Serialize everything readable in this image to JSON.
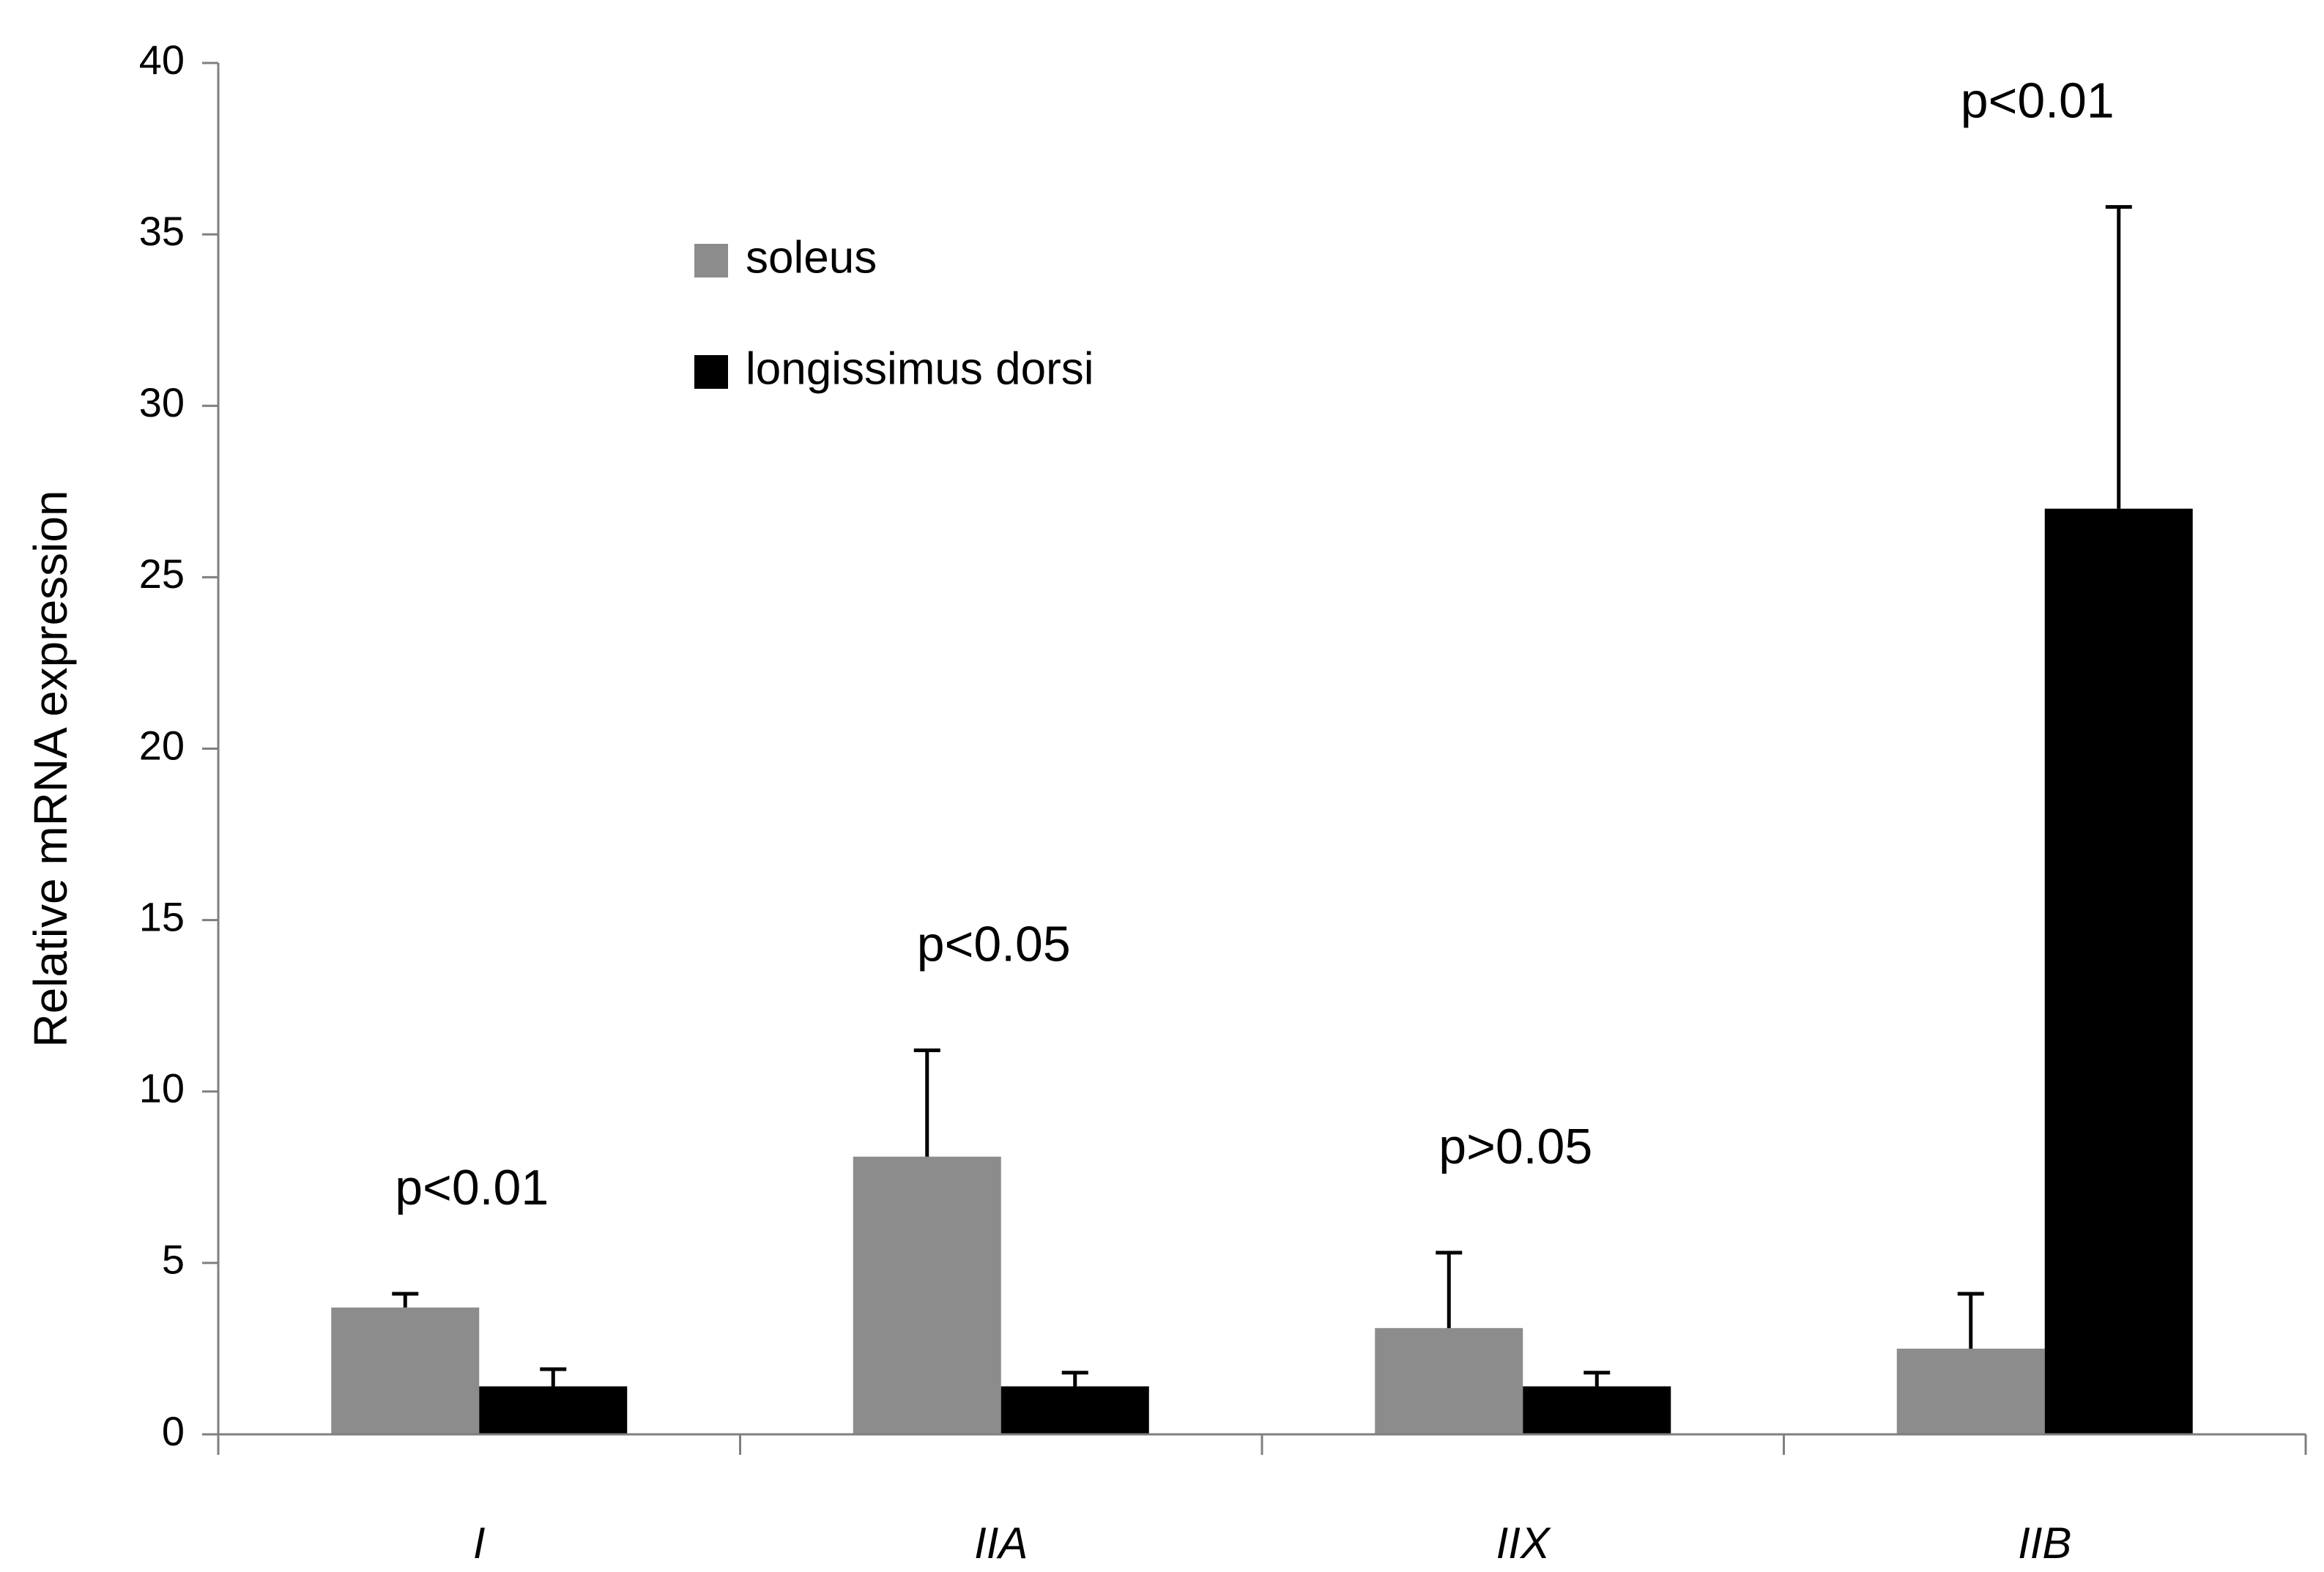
{
  "chart_data": {
    "type": "bar",
    "title": "",
    "xlabel": "",
    "ylabel": "Relative mRNA expression",
    "ylim": [
      0,
      40
    ],
    "yticks": [
      0,
      5,
      10,
      15,
      20,
      25,
      30,
      35,
      40
    ],
    "categories": [
      "I",
      "IIA",
      "IIX",
      "IIB"
    ],
    "series": [
      {
        "name": "soleus",
        "color": "#8c8c8c",
        "values": [
          3.7,
          8.1,
          3.1,
          2.5
        ],
        "errors": [
          0.4,
          3.1,
          2.2,
          1.6
        ]
      },
      {
        "name": "longissimus dorsi",
        "color": "#000000",
        "values": [
          1.4,
          1.4,
          1.4,
          27.0
        ],
        "errors": [
          0.5,
          0.4,
          0.4,
          8.8
        ]
      }
    ],
    "annotations": [
      "p<0.01",
      "p<0.05",
      "p>0.05",
      "p<0.01"
    ],
    "legend": "top-left",
    "grid": false
  }
}
